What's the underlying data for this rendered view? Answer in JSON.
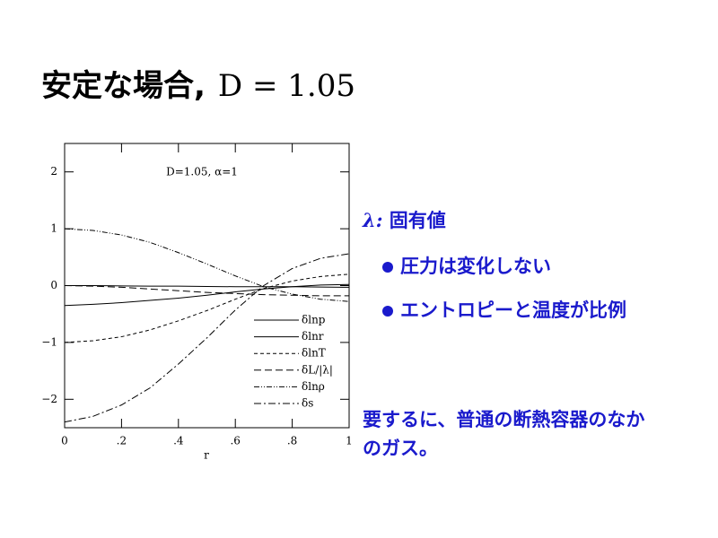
{
  "slide": {
    "title": "安定な場合,",
    "title_math": "D = 1.05",
    "heading_symbol": "λ:",
    "heading": "固有値",
    "bullets": [
      "圧力は変化しない",
      "エントロピーと温度が比例"
    ],
    "note": "要するに、普通の断熱容器のなかのガス。"
  },
  "chart_data": {
    "type": "line",
    "annotation": "D=1.05,  α=1",
    "xlabel": "r",
    "x": [
      0,
      0.1,
      0.2,
      0.3,
      0.4,
      0.5,
      0.6,
      0.7,
      0.8,
      0.9,
      1
    ],
    "series": [
      {
        "name": "δlnp",
        "color": "#000000",
        "dash": "solid",
        "values": [
          0,
          0,
          -0.005,
          -0.01,
          -0.01,
          -0.015,
          -0.02,
          -0.02,
          -0.02,
          -0.025,
          -0.03
        ]
      },
      {
        "name": "δlnr",
        "color": "#000000",
        "dash": "solid",
        "values": [
          -0.35,
          -0.33,
          -0.3,
          -0.26,
          -0.22,
          -0.17,
          -0.11,
          -0.06,
          -0.02,
          0.01,
          0.02
        ]
      },
      {
        "name": "δlnT",
        "color": "#000000",
        "dash": "dashed",
        "values": [
          -1,
          -0.97,
          -0.9,
          -0.78,
          -0.62,
          -0.44,
          -0.24,
          -0.05,
          0.08,
          0.16,
          0.2
        ]
      },
      {
        "name": "δL/|λ|",
        "color": "#000000",
        "dash": "longdash",
        "values": [
          0,
          -0.01,
          -0.03,
          -0.06,
          -0.09,
          -0.12,
          -0.14,
          -0.16,
          -0.17,
          -0.18,
          -0.18
        ]
      },
      {
        "name": "δlnρ",
        "color": "#000000",
        "dash": "dashdotdot",
        "values": [
          1,
          0.97,
          0.89,
          0.76,
          0.58,
          0.38,
          0.17,
          -0.02,
          -0.15,
          -0.24,
          -0.28
        ]
      },
      {
        "name": "δs",
        "color": "#000000",
        "dash": "dashdot",
        "values": [
          -2.4,
          -2.3,
          -2.1,
          -1.8,
          -1.38,
          -0.92,
          -0.43,
          0,
          0.3,
          0.48,
          0.56
        ]
      }
    ],
    "xlim": [
      0,
      1
    ],
    "ylim": [
      -2.5,
      2.5
    ],
    "xticks": [
      0,
      {
        "value": 0.2,
        "label": ".2"
      },
      {
        "value": 0.4,
        "label": ".4"
      },
      {
        "value": 0.6,
        "label": ".6"
      },
      {
        "value": 0.8,
        "label": ".8"
      },
      1
    ],
    "yticks": [
      {
        "value": -2,
        "label": "−2"
      },
      {
        "value": -1,
        "label": "−1"
      },
      0,
      1,
      2
    ],
    "legend": "lower right"
  }
}
